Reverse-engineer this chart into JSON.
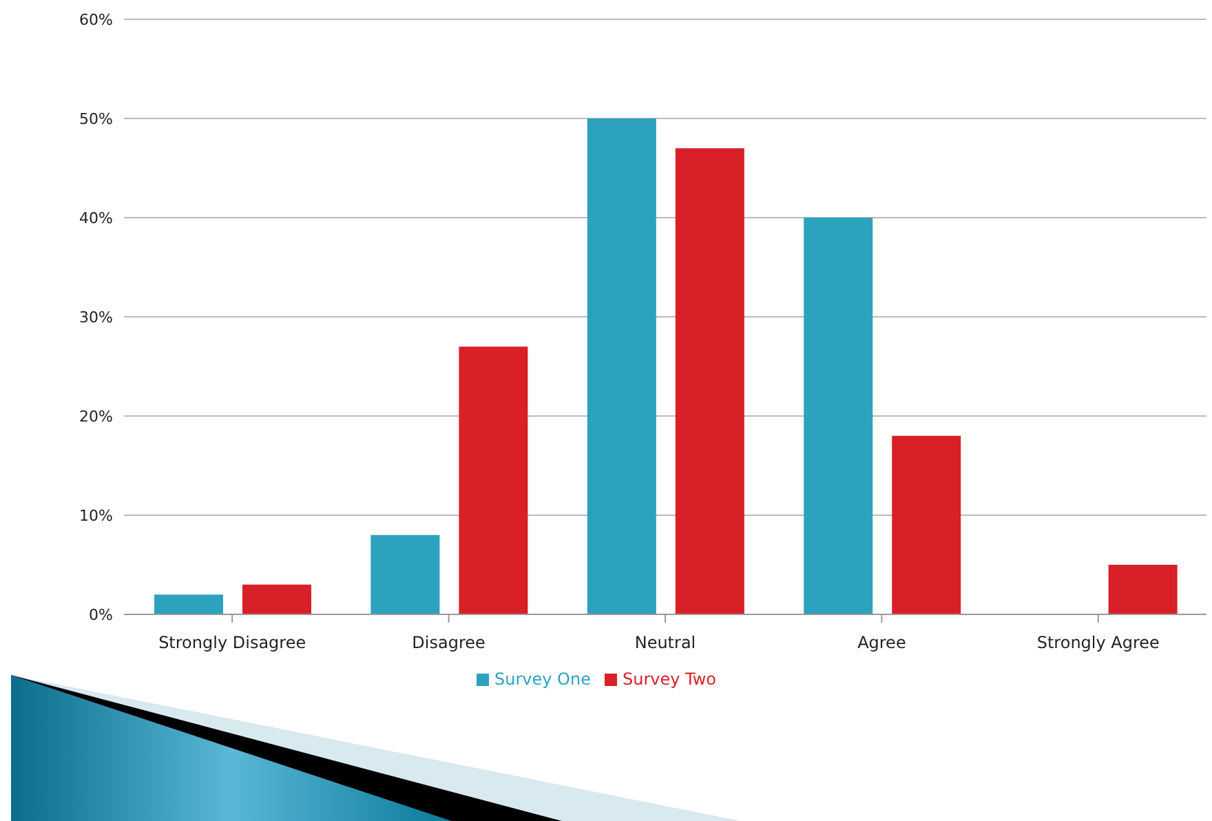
{
  "chart_data": {
    "type": "bar",
    "categories": [
      "Strongly Disagree",
      "Disagree",
      "Neutral",
      "Agree",
      "Strongly Agree"
    ],
    "series": [
      {
        "name": "Survey One",
        "color": "#2ca2bf",
        "values": [
          2,
          8,
          50,
          40,
          0
        ]
      },
      {
        "name": "Survey Two",
        "color": "#d91f28",
        "values": [
          3,
          27,
          47,
          18,
          5
        ]
      }
    ],
    "ylim": [
      0,
      60
    ],
    "yticks": [
      {
        "value": 0,
        "label": "0%"
      },
      {
        "value": 10,
        "label": "10%"
      },
      {
        "value": 20,
        "label": "20%"
      },
      {
        "value": 30,
        "label": "30%"
      },
      {
        "value": 40,
        "label": "40%"
      },
      {
        "value": 50,
        "label": "50%"
      },
      {
        "value": 60,
        "label": "60%"
      }
    ],
    "grid": "y",
    "legend": "bottom"
  }
}
